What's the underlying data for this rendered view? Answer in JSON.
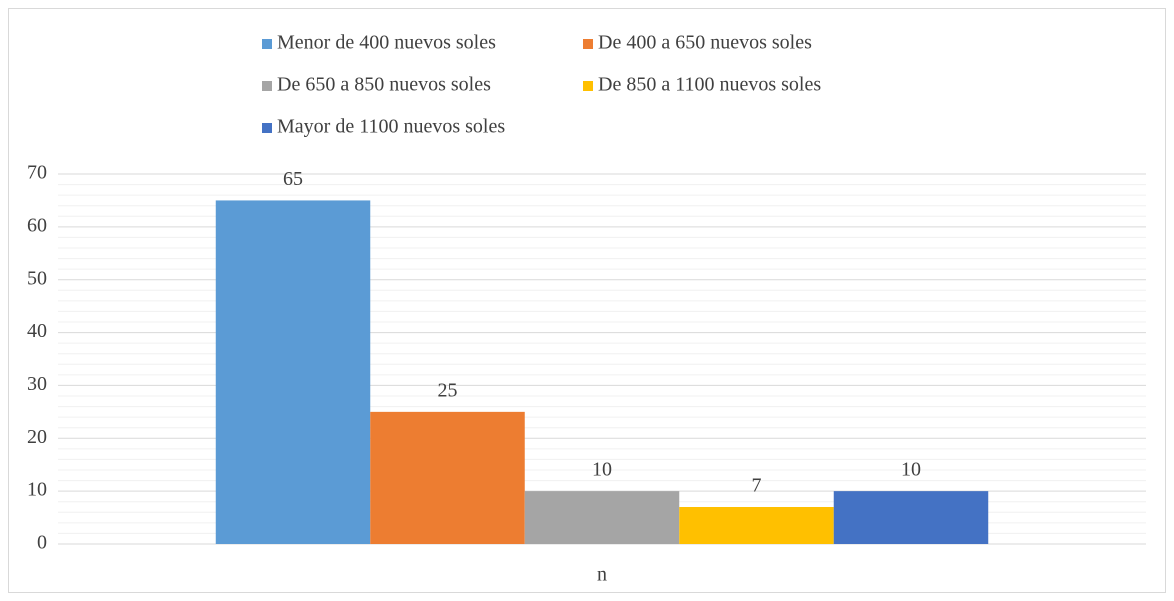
{
  "chart_data": {
    "type": "bar",
    "categories": [
      "n"
    ],
    "series": [
      {
        "name": "Menor de 400 nuevos soles",
        "color": "#5b9bd5",
        "values": [
          65
        ]
      },
      {
        "name": "De 400 a 650 nuevos soles",
        "color": "#ed7d31",
        "values": [
          25
        ]
      },
      {
        "name": "De 650 a 850 nuevos soles",
        "color": "#a5a5a5",
        "values": [
          10
        ]
      },
      {
        "name": "De 850 a 1100 nuevos soles",
        "color": "#ffc000",
        "values": [
          7
        ]
      },
      {
        "name": "Mayor de 1100 nuevos soles",
        "color": "#4472c4",
        "values": [
          10
        ]
      }
    ],
    "ylim": [
      0,
      70
    ],
    "yticks": [
      0,
      10,
      20,
      30,
      40,
      50,
      60,
      70
    ],
    "grid": true,
    "legend": "top",
    "data_labels": true
  }
}
